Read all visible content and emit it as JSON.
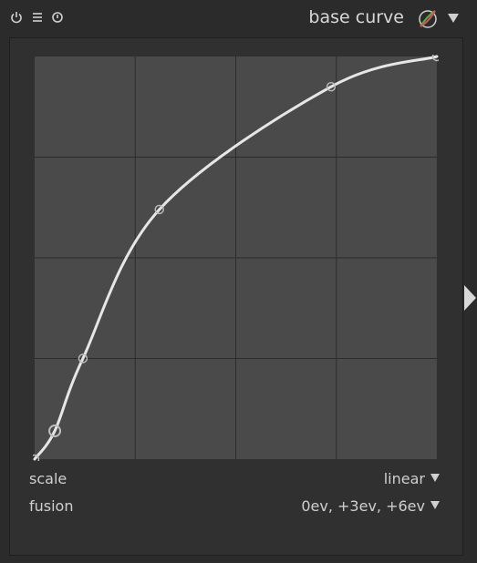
{
  "header": {
    "title": "base curve",
    "icons": [
      "power-icon",
      "presets-menu-icon",
      "reset-icon",
      "blend-mask-icon",
      "collapse-triangle-icon"
    ]
  },
  "curve": {
    "nodes": [
      [
        0.0,
        0.0
      ],
      [
        0.05,
        0.07
      ],
      [
        0.12,
        0.25
      ],
      [
        0.31,
        0.62
      ],
      [
        0.737,
        0.925
      ],
      [
        1.0,
        1.0
      ]
    ]
  },
  "controls": {
    "scale_label": "scale",
    "scale_value": "linear",
    "fusion_label": "fusion",
    "fusion_value": "0ev, +3ev, +6ev"
  },
  "colors": {
    "curve": "#e6e6e6",
    "grid_bg": "#4a4a4a",
    "grid_line": "#2c2c2c"
  }
}
